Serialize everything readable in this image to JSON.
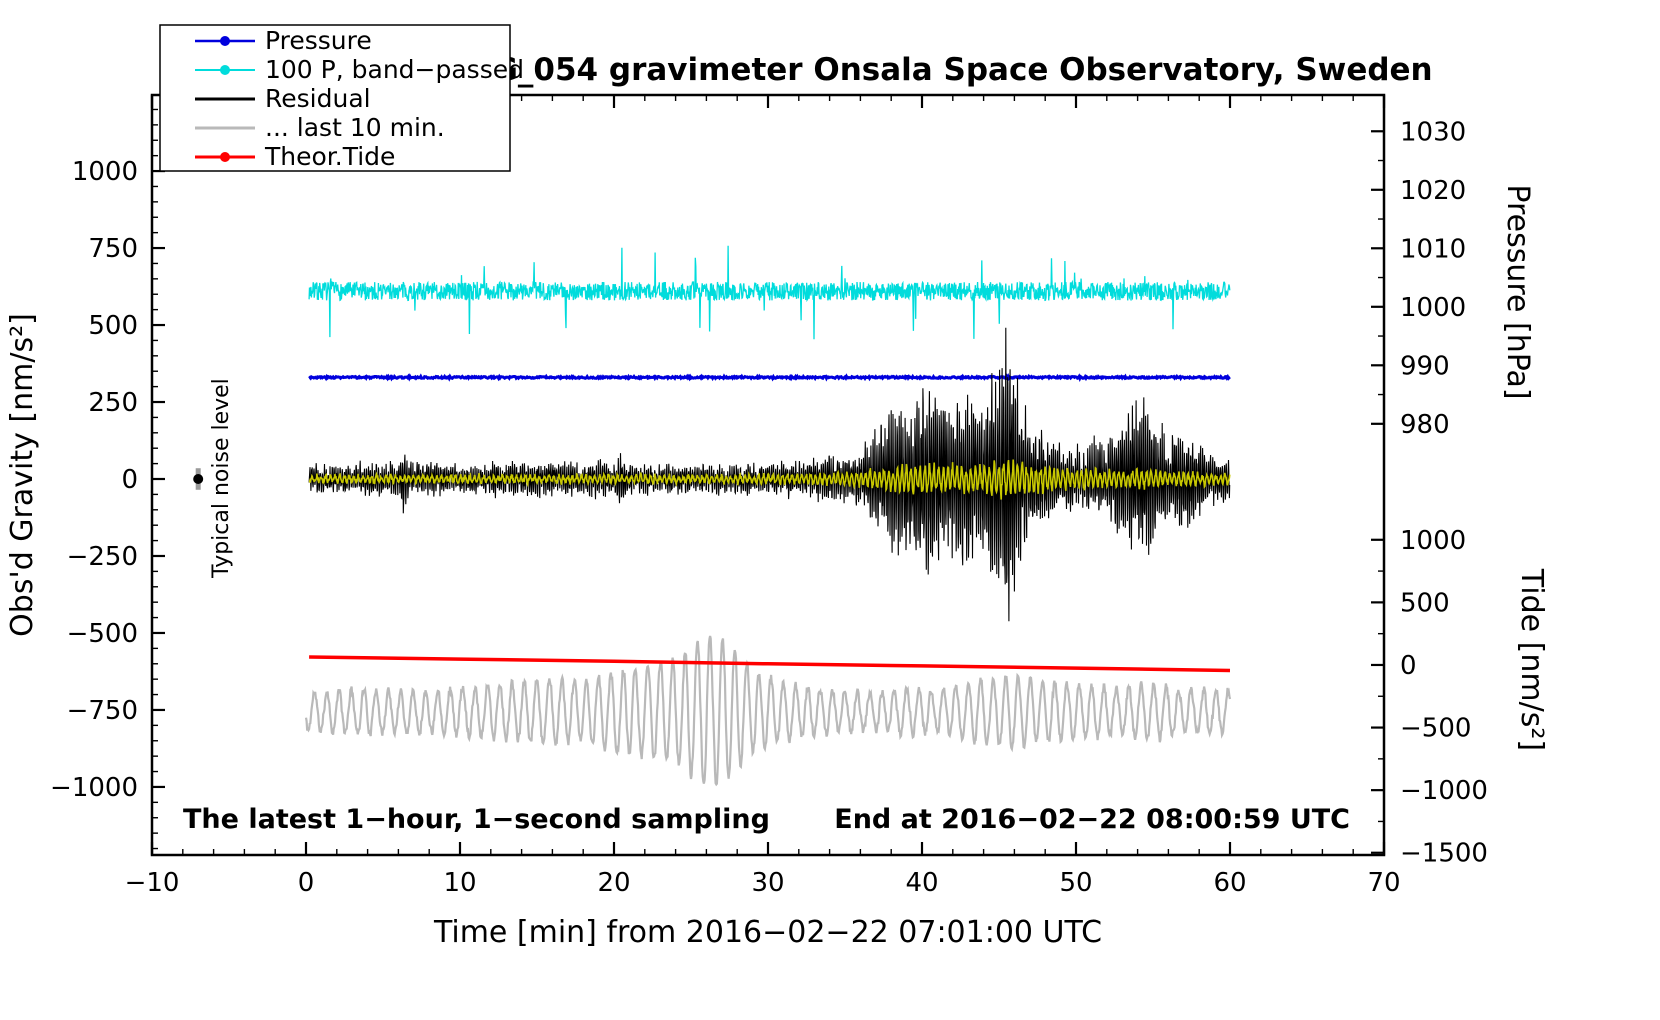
{
  "chart_data": {
    "type": "line",
    "title": "SCG_054 gravimeter Onsala Space Observatory, Sweden",
    "xlabel": "Time [min] from 2016−02−22 07:01:00 UTC",
    "ylabel_left": "Obs'd Gravity [nm/s²]",
    "ylabel_pressure": "Pressure [hPa]",
    "ylabel_tide": "Tide [nm/s²]",
    "annotation_left": "The latest 1−hour, 1−second sampling",
    "annotation_right": "End at 2016−02−22 08:00:59 UTC",
    "noise_label": "Typical noise level",
    "axes": {
      "xlim": [
        -10,
        70
      ],
      "x_major_ticks": [
        -10,
        0,
        10,
        20,
        30,
        40,
        50,
        60,
        70
      ],
      "x_minor_step": 2,
      "gravity_ylim": [
        -1221,
        1247
      ],
      "gravity_major_ticks": [
        1000,
        750,
        500,
        250,
        0,
        -250,
        -500,
        -750,
        -1000
      ],
      "gravity_minor_step": 50,
      "pressure_ylim": [
        906.3,
        1036.2
      ],
      "pressure_major_ticks": [
        1030,
        1020,
        1010,
        1000,
        990,
        980
      ],
      "pressure_minor_step": 5,
      "tide_ylim": [
        -1518,
        4553
      ],
      "tide_major_ticks": [
        1000,
        500,
        0,
        -500,
        -1000,
        -1500
      ],
      "tide_minor_step": 250
    },
    "noise_marker": {
      "x": -7,
      "y": 0,
      "bar": 35
    },
    "legend": {
      "items": [
        {
          "label": "Pressure",
          "color": "#0000dd",
          "width": 2.5,
          "marker": true
        },
        {
          "label": "100 P, band−passed",
          "color": "#00dcdc",
          "width": 2,
          "marker": true
        },
        {
          "label": "Residual",
          "color": "#000000",
          "width": 3,
          "marker": false
        },
        {
          "label": "... last 10 min.",
          "color": "#b9b9b9",
          "width": 3,
          "marker": false
        },
        {
          "label": "Theor.Tide",
          "color": "#ff0000",
          "width": 3,
          "marker": true
        }
      ]
    },
    "series": [
      {
        "key": "bandpassed-pressure",
        "label": "100 P, band−passed",
        "color": "#00dcdc",
        "width": 1.3,
        "gen": "noisy",
        "baseline": 610,
        "noise": 30,
        "spike": 140,
        "spike_p": 0.025,
        "x_start": 0.2,
        "x_end": 60,
        "dt": 0.03,
        "seed": 7
      },
      {
        "key": "pressure",
        "label": "Pressure",
        "color": "#0000dd",
        "width": 3,
        "gen": "noisy",
        "baseline": 330,
        "noise": 3,
        "spike": 0,
        "spike_p": 0,
        "x_start": 0.2,
        "x_end": 60,
        "dt": 0.05,
        "seed": 3
      },
      {
        "key": "residual-last10",
        "label": "... last 10 min.",
        "color": "#b9b9b9",
        "width": 2.2,
        "gen": "osc",
        "baseline": -755,
        "period": 0.8,
        "jitter": 0.3,
        "noise": 12,
        "amp_env": [
          [
            0,
            60
          ],
          [
            4,
            75
          ],
          [
            8,
            65
          ],
          [
            12,
            85
          ],
          [
            14,
            95
          ],
          [
            16,
            110
          ],
          [
            18,
            95
          ],
          [
            20,
            130
          ],
          [
            22,
            150
          ],
          [
            24,
            170
          ],
          [
            25,
            210
          ],
          [
            26,
            250
          ],
          [
            27,
            240
          ],
          [
            28,
            200
          ],
          [
            29,
            130
          ],
          [
            30,
            110
          ],
          [
            31,
            95
          ],
          [
            33,
            75
          ],
          [
            35,
            65
          ],
          [
            37,
            60
          ],
          [
            39,
            75
          ],
          [
            41,
            65
          ],
          [
            43,
            95
          ],
          [
            45,
            110
          ],
          [
            46,
            120
          ],
          [
            47,
            105
          ],
          [
            49,
            90
          ],
          [
            51,
            85
          ],
          [
            53,
            75
          ],
          [
            55,
            95
          ],
          [
            57,
            65
          ],
          [
            59,
            75
          ],
          [
            60,
            70
          ]
        ],
        "x_start": 0,
        "x_end": 60,
        "dt": 0.04,
        "seed": 11
      },
      {
        "key": "theoretical-tide",
        "label": "Theor.Tide",
        "color": "#ff0000",
        "width": 3.5,
        "gen": "line",
        "points": [
          [
            0.2,
            -578
          ],
          [
            10,
            -585
          ],
          [
            20,
            -592
          ],
          [
            30,
            -600
          ],
          [
            40,
            -607
          ],
          [
            50,
            -614
          ],
          [
            60,
            -622
          ]
        ]
      },
      {
        "key": "residual",
        "label": "Residual",
        "color": "#000000",
        "width": 1.1,
        "gen": "burst",
        "baseline": 0,
        "period": 0.13,
        "noise": 40,
        "amp_env": [
          [
            0,
            42
          ],
          [
            5,
            48
          ],
          [
            6,
            55
          ],
          [
            6.3,
            130
          ],
          [
            6.7,
            55
          ],
          [
            10,
            45
          ],
          [
            15,
            55
          ],
          [
            16,
            70
          ],
          [
            16.5,
            50
          ],
          [
            20,
            55
          ],
          [
            20.5,
            90
          ],
          [
            21,
            50
          ],
          [
            25,
            45
          ],
          [
            30,
            45
          ],
          [
            32,
            55
          ],
          [
            33,
            65
          ],
          [
            34,
            85
          ],
          [
            35,
            70
          ],
          [
            36,
            100
          ],
          [
            37,
            170
          ],
          [
            38,
            270
          ],
          [
            39,
            250
          ],
          [
            40,
            330
          ],
          [
            41,
            310
          ],
          [
            42,
            270
          ],
          [
            43,
            310
          ],
          [
            44,
            260
          ],
          [
            45,
            440
          ],
          [
            45.5,
            530
          ],
          [
            46,
            410
          ],
          [
            46.6,
            260
          ],
          [
            47.2,
            190
          ],
          [
            48,
            160
          ],
          [
            49,
            120
          ],
          [
            50,
            105
          ],
          [
            51,
            125
          ],
          [
            52,
            140
          ],
          [
            53,
            210
          ],
          [
            54,
            265
          ],
          [
            55,
            255
          ],
          [
            56,
            140
          ],
          [
            57,
            195
          ],
          [
            58,
            125
          ],
          [
            59,
            80
          ],
          [
            60,
            75
          ]
        ],
        "x_start": 0.2,
        "x_end": 60,
        "dt": 0.02,
        "seed": 5
      },
      {
        "key": "residual-smoothed",
        "label": "Residual smoothed",
        "color": "#c8c800",
        "width": 1.6,
        "gen": "burst",
        "baseline": 0,
        "period": 0.3,
        "noise": 13,
        "amp_env": [
          [
            0,
            13
          ],
          [
            10,
            14
          ],
          [
            20,
            15
          ],
          [
            30,
            16
          ],
          [
            33,
            20
          ],
          [
            35,
            26
          ],
          [
            37,
            35
          ],
          [
            38,
            48
          ],
          [
            40,
            60
          ],
          [
            42,
            55
          ],
          [
            44,
            50
          ],
          [
            45,
            70
          ],
          [
            46,
            62
          ],
          [
            48,
            50
          ],
          [
            50,
            42
          ],
          [
            52,
            32
          ],
          [
            54,
            36
          ],
          [
            56,
            26
          ],
          [
            58,
            22
          ],
          [
            60,
            20
          ]
        ],
        "x_start": 0.2,
        "x_end": 60,
        "dt": 0.03,
        "seed": 13
      }
    ]
  }
}
